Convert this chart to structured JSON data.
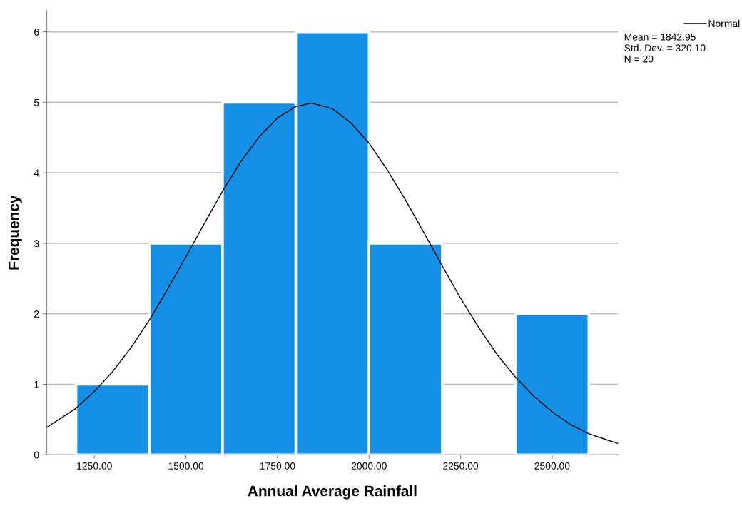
{
  "chart_data": {
    "type": "histogram",
    "xlabel": "Annual Average Rainfall",
    "ylabel": "Frequency",
    "bins": [
      1200,
      1400,
      1600,
      1800,
      2000,
      2200,
      2400,
      2600
    ],
    "series": [
      {
        "color": "#1390e6",
        "values": [
          1,
          3,
          5,
          6,
          3,
          0,
          2
        ]
      },
      {
        "type": "line",
        "name": "Normal",
        "color": "#000000",
        "x": [
          1120,
          1200,
          1250,
          1300,
          1350,
          1400,
          1450,
          1500,
          1550,
          1600,
          1650,
          1700,
          1750,
          1800,
          1843,
          1900,
          1950,
          2000,
          2050,
          2100,
          2150,
          2200,
          2250,
          2300,
          2350,
          2400,
          2450,
          2500,
          2550,
          2600,
          2650,
          2680
        ],
        "values": [
          0.39,
          0.66,
          0.9,
          1.18,
          1.52,
          1.91,
          2.35,
          2.81,
          3.28,
          3.74,
          4.16,
          4.51,
          4.78,
          4.94,
          4.99,
          4.91,
          4.71,
          4.42,
          4.04,
          3.61,
          3.15,
          2.68,
          2.22,
          1.8,
          1.42,
          1.1,
          0.83,
          0.61,
          0.43,
          0.3,
          0.21,
          0.16
        ]
      }
    ],
    "annotations": [
      "Mean = 1842.95",
      "Std. Dev. = 320.10",
      "N = 20"
    ],
    "xlim": [
      1120,
      2680
    ],
    "xticks": [
      {
        "value": 1250,
        "label": "1250.00"
      },
      {
        "value": 1500,
        "label": "1500.00"
      },
      {
        "value": 1750,
        "label": "1750.00"
      },
      {
        "value": 2000,
        "label": "2000.00"
      },
      {
        "value": 2250,
        "label": "2250.00"
      },
      {
        "value": 2500,
        "label": "2500.00"
      }
    ],
    "ylim": [
      0,
      6.3
    ],
    "yticks": [
      0,
      1,
      2,
      3,
      4,
      5,
      6
    ],
    "grid": "y",
    "legend": "top right",
    "line_style": "solid",
    "marker": "none"
  }
}
